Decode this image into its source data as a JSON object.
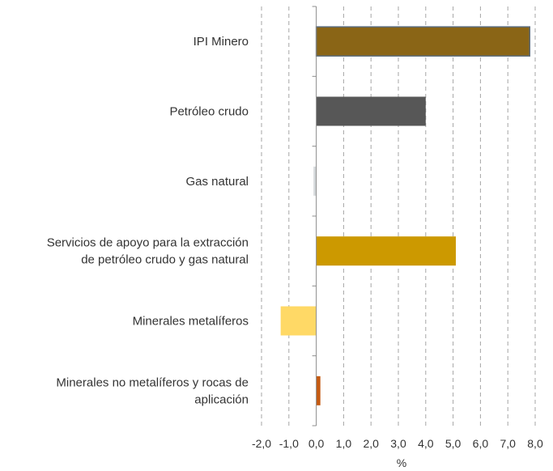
{
  "chart_data": {
    "type": "bar",
    "orientation": "horizontal",
    "categories": [
      [
        "IPI Minero"
      ],
      [
        "Petróleo crudo"
      ],
      [
        "Gas natural"
      ],
      [
        "Servicios de apoyo para la extracción",
        "de petróleo crudo y gas natural"
      ],
      [
        "Minerales metalíferos"
      ],
      [
        "Minerales no metalíferos y rocas de",
        "aplicación"
      ]
    ],
    "values": [
      7.8,
      4.0,
      -0.1,
      5.1,
      -1.3,
      0.15
    ],
    "colors": [
      "#8a6516",
      "#575757",
      "#d4d8da",
      "#cc9900",
      "#ffd966",
      "#c55a11"
    ],
    "xlabel": "%",
    "xlim": [
      -2.0,
      8.0
    ],
    "xticks": [
      -2.0,
      -1.0,
      0.0,
      1.0,
      2.0,
      3.0,
      4.0,
      5.0,
      6.0,
      7.0,
      8.0
    ],
    "xtick_labels": [
      "-2,0",
      "-1,0",
      "0,0",
      "1,0",
      "2,0",
      "3,0",
      "4,0",
      "5,0",
      "6,0",
      "7,0",
      "8,0"
    ],
    "grid": "vertical-dashed",
    "legend": "none"
  }
}
